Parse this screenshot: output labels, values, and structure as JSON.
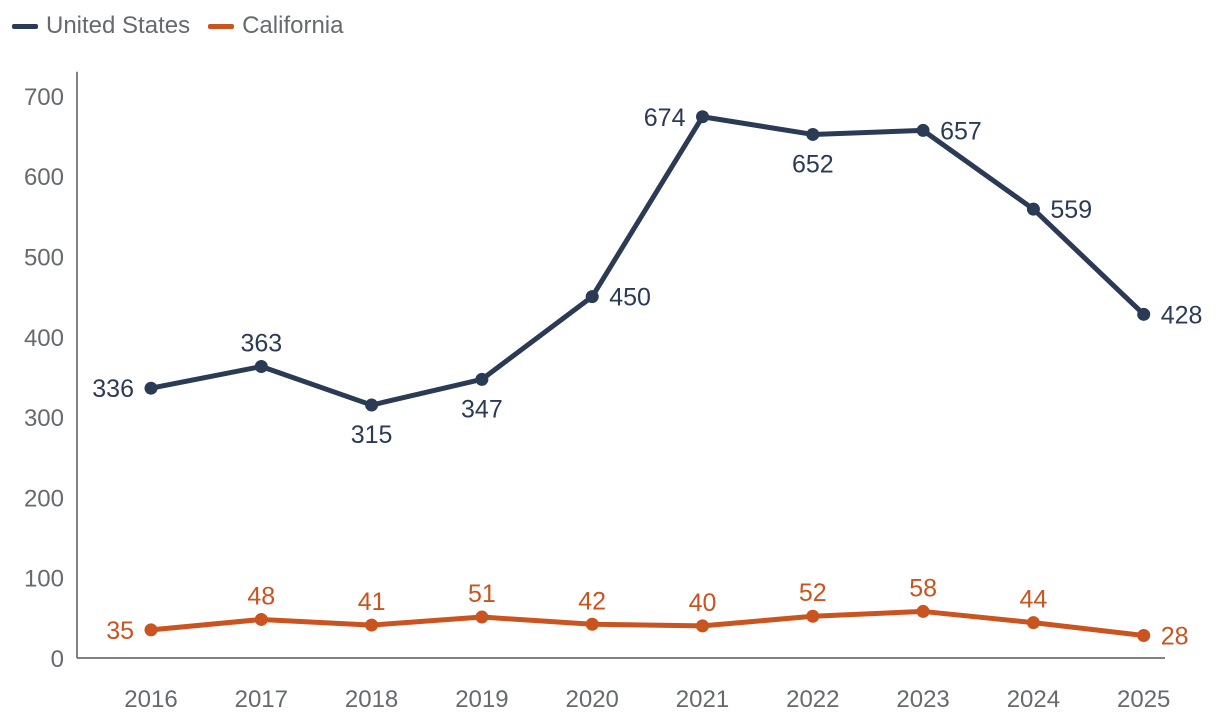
{
  "chart_data": {
    "type": "line",
    "title": "",
    "xlabel": "",
    "ylabel": "",
    "categories": [
      "2016",
      "2017",
      "2018",
      "2019",
      "2020",
      "2021",
      "2022",
      "2023",
      "2024",
      "2025"
    ],
    "yticks": [
      0,
      100,
      200,
      300,
      400,
      500,
      600,
      700
    ],
    "ylim": [
      0,
      730
    ],
    "grid": false,
    "legend_position": "top-left",
    "series": [
      {
        "name": "United States",
        "color": "#2b3a55",
        "values": [
          336,
          363,
          315,
          347,
          450,
          674,
          652,
          657,
          559,
          428
        ],
        "label_positions": [
          "left",
          "above",
          "below",
          "below",
          "right",
          "left",
          "below",
          "right",
          "right",
          "right"
        ]
      },
      {
        "name": "California",
        "color": "#c9541f",
        "values": [
          35,
          48,
          41,
          51,
          42,
          40,
          52,
          58,
          44,
          28
        ],
        "label_positions": [
          "left",
          "above",
          "above",
          "above",
          "above",
          "above",
          "above",
          "above",
          "above",
          "right"
        ]
      }
    ]
  }
}
